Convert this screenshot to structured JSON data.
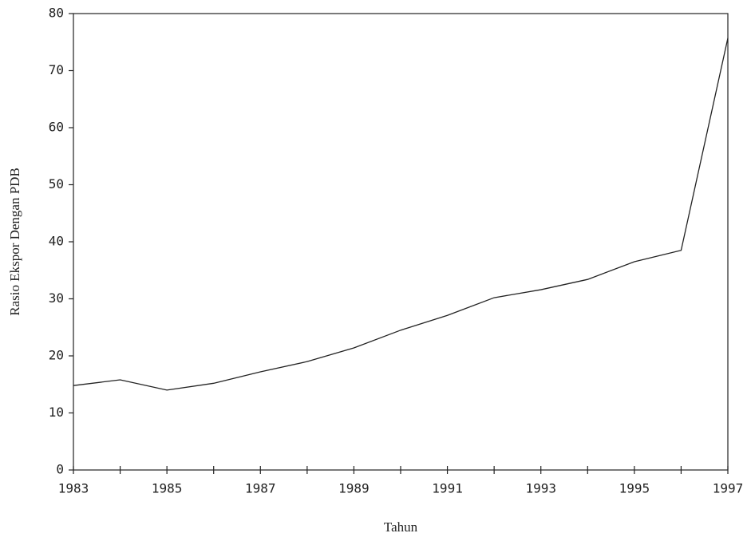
{
  "chart_data": {
    "type": "line",
    "x_label": "Tahun",
    "y_label": "Rasio Ekspor Dengan PDB",
    "x": [
      1983,
      1984,
      1985,
      1986,
      1987,
      1988,
      1989,
      1990,
      1991,
      1992,
      1993,
      1994,
      1995,
      1996,
      1997
    ],
    "series": [
      {
        "color": "#222222",
        "values": [
          14.8,
          15.8,
          14.0,
          15.2,
          17.2,
          19.0,
          21.4,
          24.5,
          27.1,
          30.2,
          31.6,
          33.4,
          36.5,
          38.5,
          75.7
        ]
      }
    ],
    "xlim": [
      1983,
      1997
    ],
    "xticks": [
      1983,
      1985,
      1987,
      1989,
      1991,
      1993,
      1995,
      1997
    ],
    "x_minor_ticks": [
      1984,
      1986,
      1988,
      1990,
      1992,
      1994,
      1996
    ],
    "ylim": [
      0,
      80
    ],
    "yticks": [
      0,
      10,
      20,
      30,
      40,
      50,
      60,
      70,
      80
    ],
    "grid": false
  }
}
